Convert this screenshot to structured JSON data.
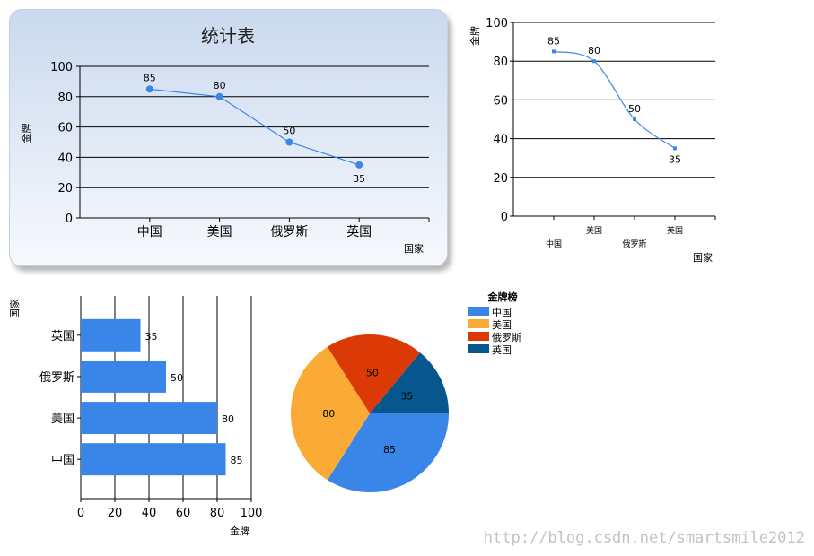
{
  "chart_data": [
    {
      "type": "line",
      "title": "统计表",
      "xlabel": "国家",
      "ylabel": "金牌",
      "categories": [
        "中国",
        "美国",
        "俄罗斯",
        "英国"
      ],
      "values": [
        85,
        80,
        50,
        35
      ],
      "ylim": [
        0,
        100
      ],
      "yticks": [
        0,
        20,
        40,
        60,
        80,
        100
      ],
      "grid": true,
      "colors": {
        "series": "#3a86e8",
        "grid": "#000000"
      }
    },
    {
      "type": "line",
      "xlabel": "国家",
      "ylabel": "金牌",
      "categories": [
        "中国",
        "美国",
        "俄罗斯",
        "英国"
      ],
      "values": [
        85,
        80,
        50,
        35
      ],
      "ylim": [
        0,
        100
      ],
      "yticks": [
        0,
        20,
        40,
        60,
        80,
        100
      ],
      "grid": true,
      "colors": {
        "series": "#3a86e8"
      }
    },
    {
      "type": "bar",
      "orientation": "horizontal",
      "xlabel": "金牌",
      "ylabel": "国家",
      "categories": [
        "中国",
        "美国",
        "俄罗斯",
        "英国"
      ],
      "values": [
        85,
        80,
        50,
        35
      ],
      "xlim": [
        0,
        100
      ],
      "xticks": [
        0,
        20,
        40,
        60,
        80,
        100
      ],
      "grid": true,
      "colors": {
        "bar": "#3a86e8"
      }
    },
    {
      "type": "pie",
      "legend_title": "金牌榜",
      "legend_position": "top-right",
      "categories": [
        "中国",
        "美国",
        "俄罗斯",
        "英国"
      ],
      "values": [
        85,
        80,
        50,
        35
      ],
      "colors": [
        "#3a86e8",
        "#fbab35",
        "#db3a06",
        "#07578e"
      ]
    }
  ],
  "watermark": "http://blog.csdn.net/smartsmile2012"
}
